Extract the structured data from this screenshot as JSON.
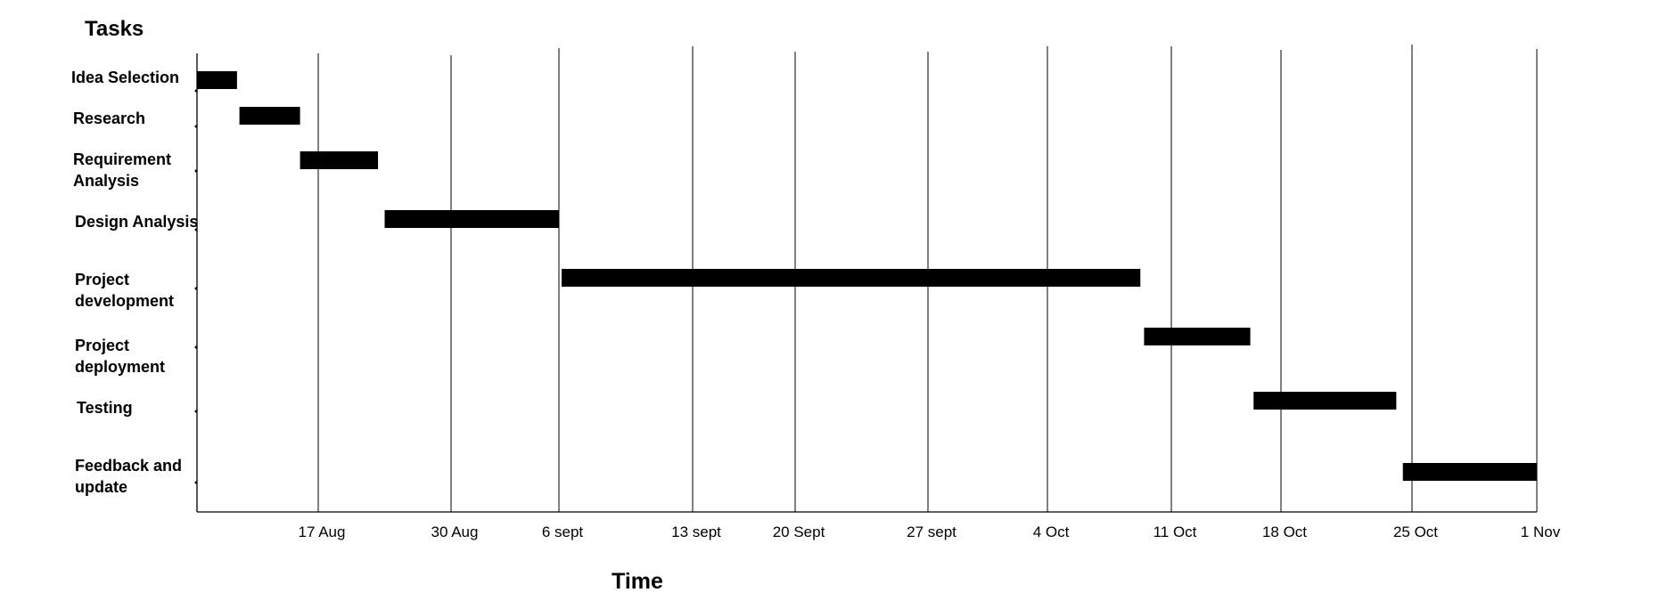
{
  "chart_data": {
    "type": "gantt",
    "ylabel": "Tasks",
    "xlabel": "Time",
    "tick_labels": [
      "17 Aug",
      "30 Aug",
      "6 sept",
      "13 sept",
      "20 Sept",
      "27 sept",
      "4 Oct",
      "11 Oct",
      "18 Oct",
      "25 Oct",
      "1 Nov"
    ],
    "x_domain": [
      0,
      11.1
    ],
    "grid": "vertical lines at each tick",
    "bar_color": "#000000",
    "tasks": [
      {
        "label": [
          "Idea Selection"
        ],
        "start": 0,
        "end": 0.33
      },
      {
        "label": [
          "Research"
        ],
        "start": 0.35,
        "end": 0.85
      },
      {
        "label": [
          "Requirement",
          "Analysis"
        ],
        "start": 0.85,
        "end": 1.45
      },
      {
        "label": [
          "Design Analysis"
        ],
        "start": 1.5,
        "end": 3.0
      },
      {
        "label": [
          "Project",
          "development"
        ],
        "start": 3.02,
        "end": 7.75
      },
      {
        "label": [
          "Project",
          "deployment"
        ],
        "start": 7.78,
        "end": 8.72
      },
      {
        "label": [
          "Testing"
        ],
        "start": 8.75,
        "end": 9.88
      },
      {
        "label": [
          "Feedback and",
          "update"
        ],
        "start": 9.93,
        "end": 11.1
      }
    ]
  }
}
